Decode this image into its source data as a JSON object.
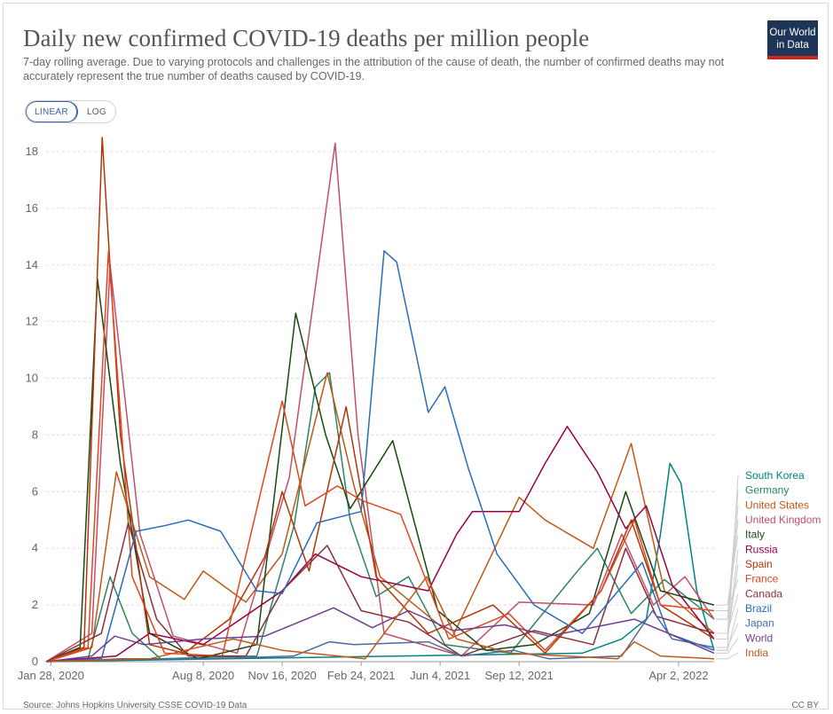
{
  "title": "Daily new confirmed COVID-19 deaths per million people",
  "subtitle": "7-day rolling average. Due to varying protocols and challenges in the attribution of the cause of death, the number of confirmed deaths may not accurately represent the true number of deaths caused by COVID-19.",
  "logo": {
    "line1": "Our World",
    "line2": "in Data"
  },
  "scale_toggle": {
    "linear_label": "LINEAR",
    "log_label": "LOG",
    "selected": "LINEAR"
  },
  "source": "Source: Johns Hopkins University CSSE COVID-19 Data",
  "license": "CC BY",
  "chart_data": {
    "type": "line",
    "x_axis": {
      "type": "date",
      "min": "2020-01-22",
      "max": "2022-05-17",
      "ticks": [
        "2020-01-28",
        "2020-08-08",
        "2020-11-16",
        "2021-02-24",
        "2021-06-04",
        "2021-09-12",
        "2022-04-02"
      ],
      "tick_labels": [
        "Jan 28, 2020",
        "Aug 8, 2020",
        "Nov 16, 2020",
        "Feb 24, 2021",
        "Jun 4, 2021",
        "Sep 12, 2021",
        "Apr 2, 2022"
      ]
    },
    "y_axis": {
      "min": 0,
      "max": 18.5,
      "ticks": [
        0,
        2,
        4,
        6,
        8,
        10,
        12,
        14,
        16,
        18
      ]
    },
    "grid": "horizontal-dashed",
    "legend": "right, line labels",
    "series": [
      {
        "name": "South Korea",
        "color": "#00847e",
        "points": [
          [
            "2020-01-22",
            0
          ],
          [
            "2021-12-01",
            0.3
          ],
          [
            "2022-01-20",
            0.8
          ],
          [
            "2022-02-20",
            1.5
          ],
          [
            "2022-03-10",
            4.5
          ],
          [
            "2022-03-22",
            7.0
          ],
          [
            "2022-04-05",
            6.3
          ],
          [
            "2022-04-25",
            2.5
          ],
          [
            "2022-05-17",
            0.4
          ]
        ]
      },
      {
        "name": "Germany",
        "color": "#2c8465",
        "points": [
          [
            "2020-01-22",
            0
          ],
          [
            "2020-03-15",
            0.1
          ],
          [
            "2020-04-12",
            3.0
          ],
          [
            "2020-05-10",
            1.0
          ],
          [
            "2020-06-15",
            0.1
          ],
          [
            "2020-10-15",
            0.2
          ],
          [
            "2020-12-01",
            4.8
          ],
          [
            "2020-12-28",
            9.7
          ],
          [
            "2021-01-15",
            10.2
          ],
          [
            "2021-02-10",
            5.0
          ],
          [
            "2021-03-15",
            2.3
          ],
          [
            "2021-04-25",
            3.0
          ],
          [
            "2021-06-10",
            0.6
          ],
          [
            "2021-09-01",
            0.3
          ],
          [
            "2021-11-25",
            3.2
          ],
          [
            "2021-12-20",
            4.0
          ],
          [
            "2022-02-01",
            1.7
          ],
          [
            "2022-03-15",
            2.9
          ],
          [
            "2022-05-17",
            1.5
          ]
        ]
      },
      {
        "name": "United States",
        "color": "#be5915",
        "points": [
          [
            "2020-01-22",
            0
          ],
          [
            "2020-03-20",
            0.5
          ],
          [
            "2020-04-20",
            6.7
          ],
          [
            "2020-06-01",
            3.0
          ],
          [
            "2020-07-15",
            2.2
          ],
          [
            "2020-08-08",
            3.2
          ],
          [
            "2020-10-01",
            2.1
          ],
          [
            "2020-11-16",
            3.8
          ],
          [
            "2021-01-12",
            10.2
          ],
          [
            "2021-02-15",
            6.2
          ],
          [
            "2021-03-20",
            3.0
          ],
          [
            "2021-06-20",
            0.9
          ],
          [
            "2021-09-12",
            5.8
          ],
          [
            "2021-10-15",
            5.0
          ],
          [
            "2021-12-15",
            4.0
          ],
          [
            "2022-02-01",
            7.7
          ],
          [
            "2022-03-15",
            2.5
          ],
          [
            "2022-05-17",
            1.0
          ]
        ]
      },
      {
        "name": "United Kingdom",
        "color": "#c15065",
        "points": [
          [
            "2020-01-22",
            0
          ],
          [
            "2020-03-20",
            1.0
          ],
          [
            "2020-04-12",
            14.0
          ],
          [
            "2020-05-20",
            4.5
          ],
          [
            "2020-07-01",
            0.9
          ],
          [
            "2020-09-20",
            0.3
          ],
          [
            "2020-11-25",
            6.5
          ],
          [
            "2021-01-22",
            18.3
          ],
          [
            "2021-02-20",
            8.0
          ],
          [
            "2021-03-25",
            1.0
          ],
          [
            "2021-07-01",
            0.2
          ],
          [
            "2021-09-12",
            2.1
          ],
          [
            "2021-12-15",
            2.0
          ],
          [
            "2022-01-20",
            4.5
          ],
          [
            "2022-03-01",
            2.0
          ],
          [
            "2022-04-10",
            3.0
          ],
          [
            "2022-05-17",
            1.5
          ]
        ]
      },
      {
        "name": "Italy",
        "color": "#18470f",
        "points": [
          [
            "2020-01-22",
            0
          ],
          [
            "2020-03-05",
            0.5
          ],
          [
            "2020-03-27",
            13.5
          ],
          [
            "2020-04-25",
            7.0
          ],
          [
            "2020-06-01",
            1.0
          ],
          [
            "2020-08-01",
            0.1
          ],
          [
            "2020-10-15",
            0.6
          ],
          [
            "2020-12-03",
            12.3
          ],
          [
            "2021-01-10",
            8.0
          ],
          [
            "2021-02-10",
            5.4
          ],
          [
            "2021-04-05",
            7.8
          ],
          [
            "2021-06-01",
            1.8
          ],
          [
            "2021-08-01",
            0.4
          ],
          [
            "2021-10-01",
            0.6
          ],
          [
            "2021-12-10",
            1.7
          ],
          [
            "2022-01-25",
            6.0
          ],
          [
            "2022-03-10",
            2.5
          ],
          [
            "2022-05-17",
            2.0
          ]
        ]
      },
      {
        "name": "Russia",
        "color": "#970046",
        "points": [
          [
            "2020-01-22",
            0
          ],
          [
            "2020-04-20",
            0.2
          ],
          [
            "2020-06-01",
            1.0
          ],
          [
            "2020-08-08",
            0.6
          ],
          [
            "2020-11-16",
            2.5
          ],
          [
            "2020-12-28",
            3.8
          ],
          [
            "2021-02-24",
            3.0
          ],
          [
            "2021-05-20",
            2.5
          ],
          [
            "2021-06-25",
            4.5
          ],
          [
            "2021-07-15",
            5.3
          ],
          [
            "2021-09-12",
            5.3
          ],
          [
            "2021-10-15",
            7.0
          ],
          [
            "2021-11-12",
            8.3
          ],
          [
            "2021-12-20",
            6.7
          ],
          [
            "2022-01-25",
            4.7
          ],
          [
            "2022-02-20",
            5.5
          ],
          [
            "2022-03-25",
            2.7
          ],
          [
            "2022-05-17",
            0.8
          ]
        ]
      },
      {
        "name": "Spain",
        "color": "#b13507",
        "points": [
          [
            "2020-01-22",
            0
          ],
          [
            "2020-03-10",
            0.5
          ],
          [
            "2020-04-02",
            18.5
          ],
          [
            "2020-04-25",
            8.0
          ],
          [
            "2020-06-01",
            0.6
          ],
          [
            "2020-07-15",
            0.3
          ],
          [
            "2020-09-10",
            1.5
          ],
          [
            "2020-10-25",
            3.7
          ],
          [
            "2020-11-16",
            6.0
          ],
          [
            "2020-12-20",
            3.2
          ],
          [
            "2021-02-05",
            9.0
          ],
          [
            "2021-03-15",
            3.0
          ],
          [
            "2021-05-20",
            1.0
          ],
          [
            "2021-08-10",
            2.0
          ],
          [
            "2021-10-15",
            0.3
          ],
          [
            "2021-12-25",
            2.5
          ],
          [
            "2022-02-01",
            5.0
          ],
          [
            "2022-03-10",
            2.0
          ],
          [
            "2022-05-17",
            0.8
          ]
        ]
      },
      {
        "name": "France",
        "color": "#e0471f",
        "points": [
          [
            "2020-01-22",
            0
          ],
          [
            "2020-03-15",
            0.5
          ],
          [
            "2020-04-10",
            14.5
          ],
          [
            "2020-05-10",
            3.0
          ],
          [
            "2020-06-20",
            0.3
          ],
          [
            "2020-09-01",
            0.2
          ],
          [
            "2020-11-16",
            9.2
          ],
          [
            "2020-12-15",
            5.5
          ],
          [
            "2021-01-25",
            6.2
          ],
          [
            "2021-02-24",
            5.7
          ],
          [
            "2021-04-15",
            5.2
          ],
          [
            "2021-06-15",
            0.8
          ],
          [
            "2021-08-30",
            1.7
          ],
          [
            "2021-10-15",
            0.4
          ],
          [
            "2021-12-25",
            2.5
          ],
          [
            "2022-02-05",
            5.0
          ],
          [
            "2022-03-10",
            2.0
          ],
          [
            "2022-05-17",
            1.8
          ]
        ]
      },
      {
        "name": "Canada",
        "color": "#883039",
        "points": [
          [
            "2020-01-22",
            0
          ],
          [
            "2020-04-01",
            1.0
          ],
          [
            "2020-05-05",
            4.9
          ],
          [
            "2020-06-10",
            1.5
          ],
          [
            "2020-07-20",
            0.2
          ],
          [
            "2020-10-01",
            0.2
          ],
          [
            "2020-11-16",
            2.5
          ],
          [
            "2021-01-12",
            4.1
          ],
          [
            "2021-02-24",
            1.8
          ],
          [
            "2021-04-25",
            1.4
          ],
          [
            "2021-07-01",
            0.2
          ],
          [
            "2021-10-01",
            1.1
          ],
          [
            "2021-12-15",
            0.6
          ],
          [
            "2022-01-25",
            4.0
          ],
          [
            "2022-03-05",
            1.6
          ],
          [
            "2022-05-17",
            1.0
          ]
        ]
      },
      {
        "name": "Brazil",
        "color": "#286bbb",
        "points": [
          [
            "2020-01-22",
            0
          ],
          [
            "2020-04-01",
            0.1
          ],
          [
            "2020-05-15",
            4.6
          ],
          [
            "2020-06-20",
            4.8
          ],
          [
            "2020-07-20",
            5.0
          ],
          [
            "2020-08-30",
            4.6
          ],
          [
            "2020-10-15",
            2.5
          ],
          [
            "2020-11-16",
            2.4
          ],
          [
            "2020-12-30",
            4.9
          ],
          [
            "2021-02-24",
            5.3
          ],
          [
            "2021-03-25",
            14.5
          ],
          [
            "2021-04-10",
            14.1
          ],
          [
            "2021-05-20",
            8.8
          ],
          [
            "2021-06-10",
            9.7
          ],
          [
            "2021-07-10",
            6.8
          ],
          [
            "2021-08-15",
            3.8
          ],
          [
            "2021-10-01",
            2.0
          ],
          [
            "2021-12-01",
            1.0
          ],
          [
            "2022-02-15",
            3.5
          ],
          [
            "2022-03-20",
            1.0
          ],
          [
            "2022-05-17",
            0.4
          ]
        ]
      },
      {
        "name": "Japan",
        "color": "#4c6a9c",
        "points": [
          [
            "2020-01-22",
            0
          ],
          [
            "2020-04-25",
            0.1
          ],
          [
            "2020-08-20",
            0.1
          ],
          [
            "2020-12-01",
            0.2
          ],
          [
            "2021-01-15",
            0.7
          ],
          [
            "2021-02-15",
            0.6
          ],
          [
            "2021-05-20",
            0.7
          ],
          [
            "2021-07-01",
            0.2
          ],
          [
            "2021-09-05",
            0.4
          ],
          [
            "2021-10-20",
            0.1
          ],
          [
            "2022-01-20",
            0.2
          ],
          [
            "2022-02-28",
            1.8
          ],
          [
            "2022-03-25",
            0.8
          ],
          [
            "2022-05-17",
            0.5
          ]
        ]
      },
      {
        "name": "World",
        "color": "#6d3e91",
        "points": [
          [
            "2020-01-22",
            0
          ],
          [
            "2020-03-20",
            0.2
          ],
          [
            "2020-04-18",
            0.9
          ],
          [
            "2020-05-25",
            0.6
          ],
          [
            "2020-08-08",
            0.8
          ],
          [
            "2020-10-25",
            0.9
          ],
          [
            "2021-01-20",
            1.9
          ],
          [
            "2021-03-10",
            1.2
          ],
          [
            "2021-04-25",
            1.8
          ],
          [
            "2021-06-20",
            1.1
          ],
          [
            "2021-08-25",
            1.3
          ],
          [
            "2021-10-20",
            0.9
          ],
          [
            "2022-02-05",
            1.5
          ],
          [
            "2022-03-20",
            1.0
          ],
          [
            "2022-05-17",
            0.3
          ]
        ]
      },
      {
        "name": "India",
        "color": "#c05917",
        "points": [
          [
            "2020-01-22",
            0
          ],
          [
            "2020-06-01",
            0.1
          ],
          [
            "2020-09-15",
            0.8
          ],
          [
            "2020-11-16",
            0.4
          ],
          [
            "2021-03-01",
            0.1
          ],
          [
            "2021-05-18",
            3.0
          ],
          [
            "2021-06-25",
            0.8
          ],
          [
            "2021-09-01",
            0.3
          ],
          [
            "2022-01-15",
            0.1
          ],
          [
            "2022-02-05",
            0.7
          ],
          [
            "2022-03-10",
            0.2
          ],
          [
            "2022-05-17",
            0.1
          ]
        ]
      }
    ]
  }
}
